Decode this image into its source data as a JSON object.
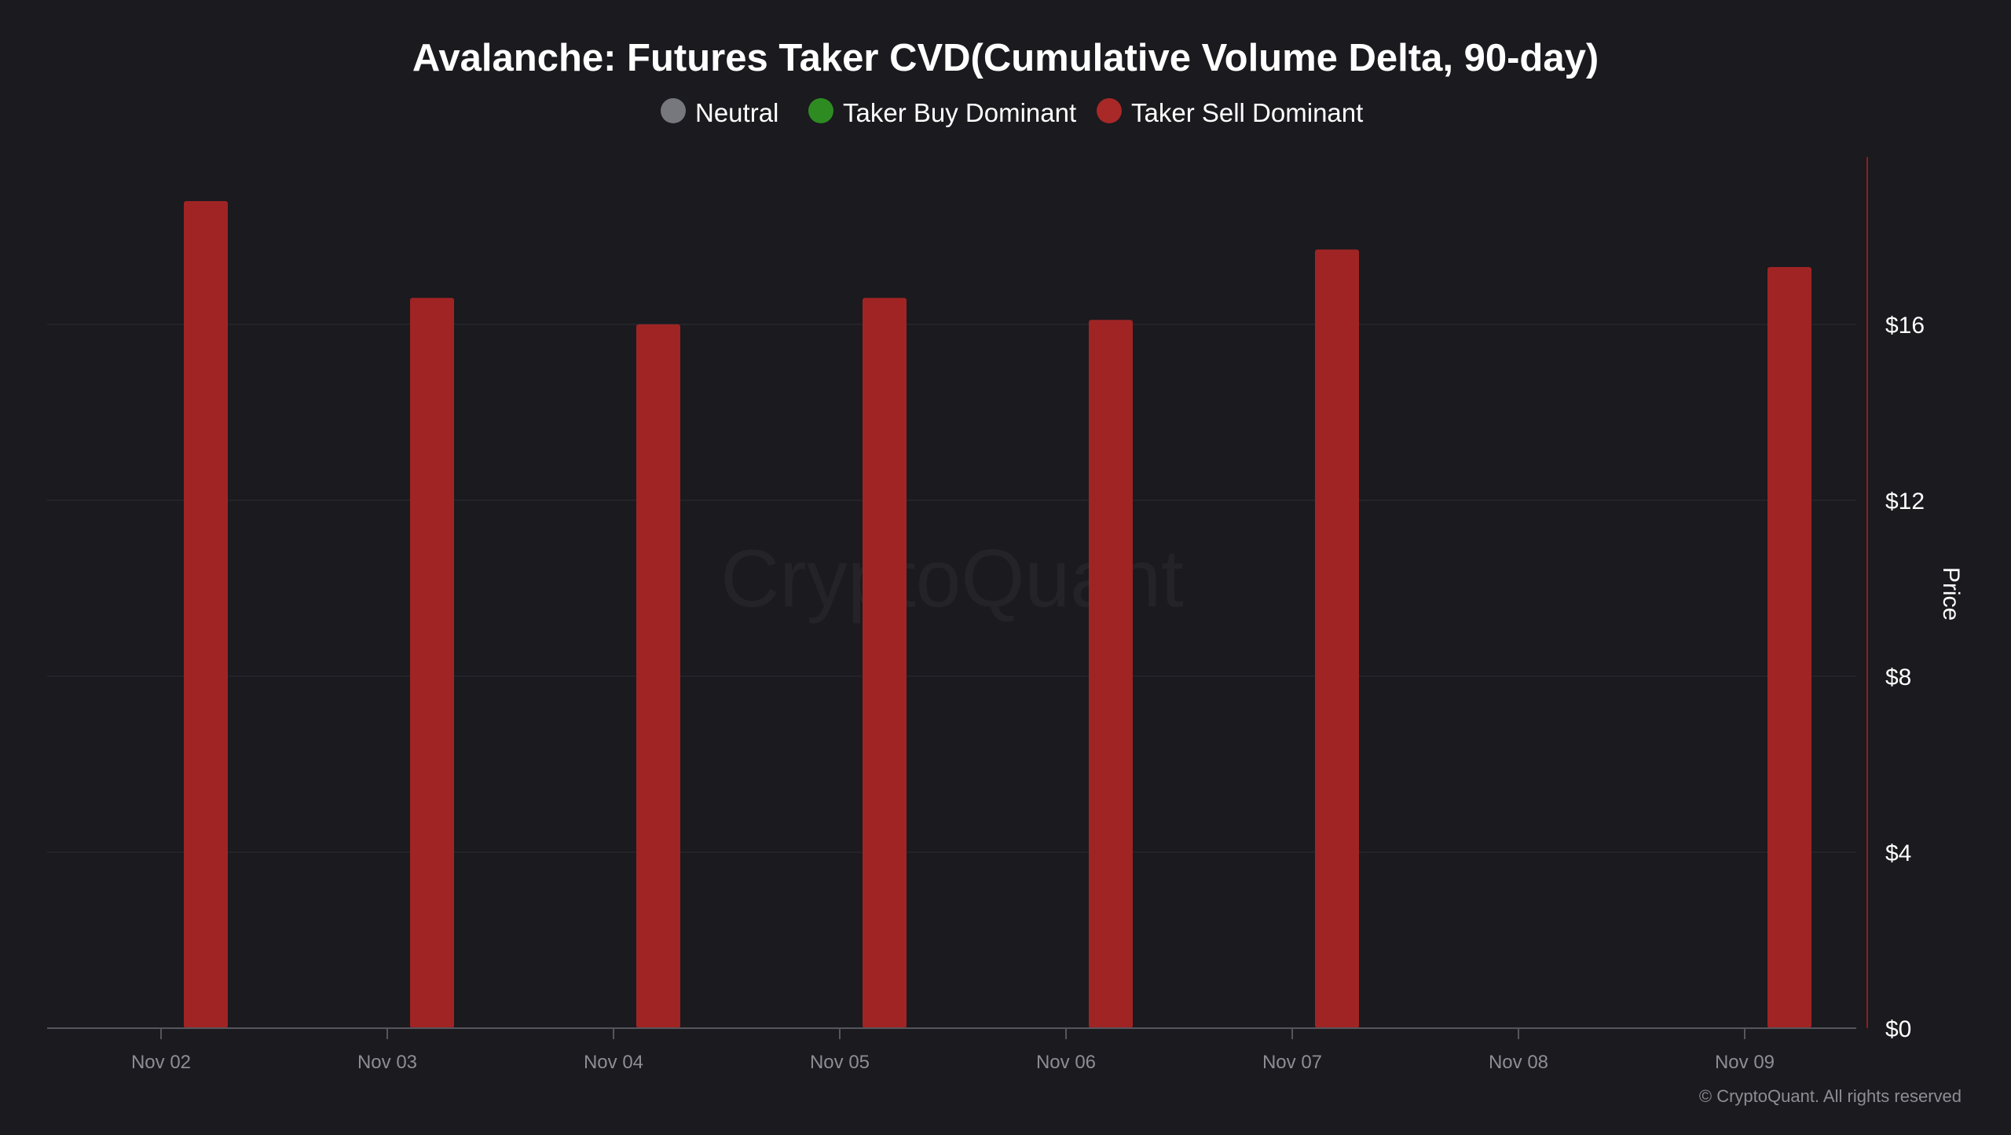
{
  "chart_data": {
    "type": "bar",
    "title": "Avalanche: Futures Taker CVD(Cumulative Volume Delta, 90-day)",
    "categories": [
      "Nov 02",
      "Nov 03",
      "Nov 04",
      "Nov 05",
      "Nov 06",
      "Nov 07",
      "Nov 08",
      "Nov 09"
    ],
    "series": [
      {
        "name": "Taker Sell Dominant",
        "color": "#a02424",
        "values": [
          18.8,
          16.6,
          16.0,
          16.6,
          16.1,
          17.7,
          null,
          17.3
        ]
      }
    ],
    "legend": {
      "position": "top-center",
      "items": [
        {
          "label": "Neutral",
          "color": "#77777e"
        },
        {
          "label": "Taker Buy Dominant",
          "color": "#2e8b22"
        },
        {
          "label": "Taker Sell Dominant",
          "color": "#a92828"
        }
      ]
    },
    "y_axis": {
      "label": "Price",
      "side": "right",
      "ylim": [
        0,
        19.8
      ],
      "ticks": [
        {
          "value": 0,
          "label": "$0"
        },
        {
          "value": 4,
          "label": "$4"
        },
        {
          "value": 8,
          "label": "$8"
        },
        {
          "value": 12,
          "label": "$12"
        },
        {
          "value": 16,
          "label": "$16"
        }
      ],
      "axis_color": "#8f1f1f"
    },
    "grid": true,
    "watermark": "CryptoQuant",
    "copyright": "© CryptoQuant. All rights reserved",
    "colors": {
      "background": "#1a1a1f",
      "gridline": "#26262c",
      "axis_text": "#8d8d93",
      "text": "#ffffff"
    }
  }
}
